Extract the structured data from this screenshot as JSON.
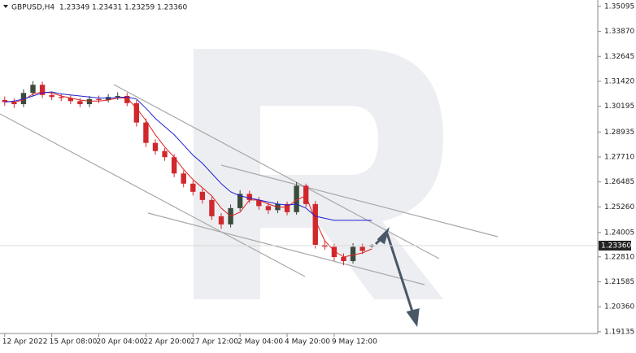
{
  "chart_data": {
    "type": "candlestick",
    "header": {
      "symbol": "GBPUSD,H4",
      "values": [
        "1.23349",
        "1.23431",
        "1.23259",
        "1.23360"
      ]
    },
    "current_price": {
      "value": 1.2336,
      "label": "1.23360"
    },
    "up_color": "#3b4b3b",
    "down_color": "#d0282c",
    "xlim": [
      -0.5,
      63
    ],
    "xticks": [
      {
        "value": 0,
        "label": "12 Apr 2022"
      },
      {
        "value": 5,
        "label": "15 Apr 08:00"
      },
      {
        "value": 10,
        "label": "20 Apr 04:00"
      },
      {
        "value": 15,
        "label": "22 Apr 20:00"
      },
      {
        "value": 20,
        "label": "27 Apr 12:00"
      },
      {
        "value": 25,
        "label": "2 May 04:00"
      },
      {
        "value": 30,
        "label": "4 May 20:00"
      },
      {
        "value": 35,
        "label": "9 May 12:00"
      }
    ],
    "ylim": [
      1.1905,
      1.3541
    ],
    "yticks": [
      1.35095,
      {
        "value": 1.3387,
        "label": "1.33870"
      },
      1.32645,
      {
        "value": 1.3142,
        "label": "1.31420"
      },
      1.30195,
      1.28935,
      {
        "value": 1.2771,
        "label": "1.27710"
      },
      1.26485,
      {
        "value": 1.2526,
        "label": "1.25260"
      },
      1.24005,
      {
        "value": 1.2281,
        "label": "1.22810"
      },
      1.21585,
      {
        "value": 1.2036,
        "label": "1.20360"
      },
      1.19135
    ],
    "open": [
      1.305,
      1.304,
      1.303,
      1.3085,
      1.3125,
      1.3075,
      1.3065,
      1.306,
      1.3045,
      1.303,
      1.3055,
      1.305,
      1.3065,
      1.307,
      1.3035,
      1.294,
      1.284,
      1.28,
      1.277,
      1.269,
      1.264,
      1.26,
      1.256,
      1.248,
      1.244,
      1.252,
      1.259,
      1.256,
      1.253,
      1.251,
      1.254,
      1.25,
      1.263,
      1.254,
      1.234,
      1.233,
      1.228,
      1.226,
      1.233,
      1.23349
    ],
    "high": [
      1.3068,
      1.3058,
      1.3103,
      1.3143,
      1.314,
      1.309,
      1.308,
      1.3075,
      1.306,
      1.307,
      1.3072,
      1.308,
      1.3088,
      1.3085,
      1.305,
      1.296,
      1.2858,
      1.2815,
      1.2785,
      1.2705,
      1.2655,
      1.2615,
      1.2575,
      1.2495,
      1.2538,
      1.2608,
      1.2605,
      1.2575,
      1.2545,
      1.2555,
      1.2552,
      1.2648,
      1.264,
      1.2555,
      1.2362,
      1.2345,
      1.2298,
      1.2348,
      1.2345,
      1.23431
    ],
    "low": [
      1.3022,
      1.3012,
      1.3015,
      1.307,
      1.306,
      1.305,
      1.3045,
      1.303,
      1.3015,
      1.3015,
      1.3035,
      1.3038,
      1.305,
      1.302,
      1.292,
      1.282,
      1.2782,
      1.2752,
      1.2672,
      1.2622,
      1.2582,
      1.2542,
      1.2462,
      1.2418,
      1.2425,
      1.2505,
      1.2545,
      1.2512,
      1.2492,
      1.2495,
      1.2485,
      1.2488,
      1.2525,
      1.2322,
      1.2315,
      1.2262,
      1.224,
      1.2248,
      1.2295,
      1.23259
    ],
    "close": [
      1.304,
      1.303,
      1.3085,
      1.3125,
      1.3075,
      1.3065,
      1.306,
      1.3045,
      1.303,
      1.3055,
      1.305,
      1.3065,
      1.307,
      1.3035,
      1.294,
      1.284,
      1.28,
      1.277,
      1.269,
      1.264,
      1.26,
      1.256,
      1.248,
      1.244,
      1.252,
      1.259,
      1.256,
      1.253,
      1.251,
      1.254,
      1.25,
      1.263,
      1.254,
      1.234,
      1.233,
      1.228,
      1.226,
      1.233,
      1.231,
      1.2336
    ],
    "lines": [
      {
        "color": "#e02020",
        "values": [
          1.3045,
          1.304,
          1.305,
          1.308,
          1.309,
          1.3085,
          1.307,
          1.306,
          1.305,
          1.3045,
          1.3045,
          1.305,
          1.306,
          1.306,
          1.301,
          1.295,
          1.288,
          1.282,
          1.277,
          1.271,
          1.266,
          1.262,
          1.258,
          1.252,
          1.248,
          1.25,
          1.256,
          1.256,
          1.254,
          1.2525,
          1.2525,
          1.256,
          1.258,
          1.246,
          1.236,
          1.231,
          1.228,
          1.229,
          1.23,
          1.232
        ]
      },
      {
        "color": "#2020d0",
        "values": [
          1.304,
          1.3045,
          1.3055,
          1.307,
          1.3085,
          1.309,
          1.308,
          1.3075,
          1.307,
          1.3065,
          1.306,
          1.306,
          1.3062,
          1.3065,
          1.3055,
          1.301,
          1.296,
          1.292,
          1.288,
          1.283,
          1.278,
          1.274,
          1.269,
          1.264,
          1.26,
          1.258,
          1.257,
          1.256,
          1.255,
          1.254,
          1.2535,
          1.254,
          1.252,
          1.248,
          1.247,
          1.246,
          1.246,
          1.246,
          1.246,
          1.246
        ]
      }
    ]
  }
}
